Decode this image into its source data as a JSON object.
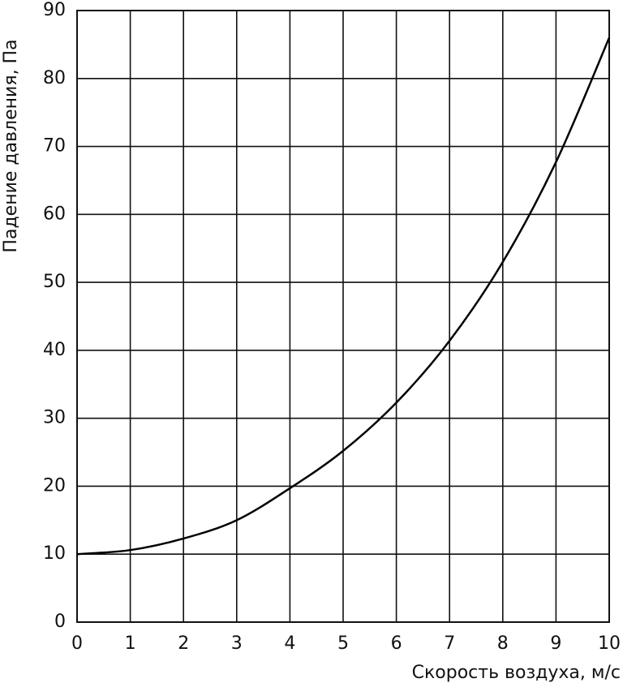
{
  "chart_data": {
    "type": "line",
    "x_label": "Скорость воздуха, м/с",
    "y_label": "Падение давления, Па",
    "x": [
      0,
      1,
      2,
      3,
      4,
      5,
      6,
      7,
      8,
      9,
      10
    ],
    "series": [
      {
        "color": "#000000",
        "values": [
          10,
          10.6,
          12.3,
          15,
          19.7,
          25.2,
          32.3,
          41.4,
          53,
          67.7,
          86
        ]
      }
    ],
    "xlim": [
      0,
      10
    ],
    "xticks": [
      0,
      1,
      2,
      3,
      4,
      5,
      6,
      7,
      8,
      9,
      10
    ],
    "ylim": [
      0,
      90
    ],
    "yticks": [
      0,
      10,
      20,
      30,
      40,
      50,
      60,
      70,
      80,
      90
    ],
    "grid": true
  }
}
